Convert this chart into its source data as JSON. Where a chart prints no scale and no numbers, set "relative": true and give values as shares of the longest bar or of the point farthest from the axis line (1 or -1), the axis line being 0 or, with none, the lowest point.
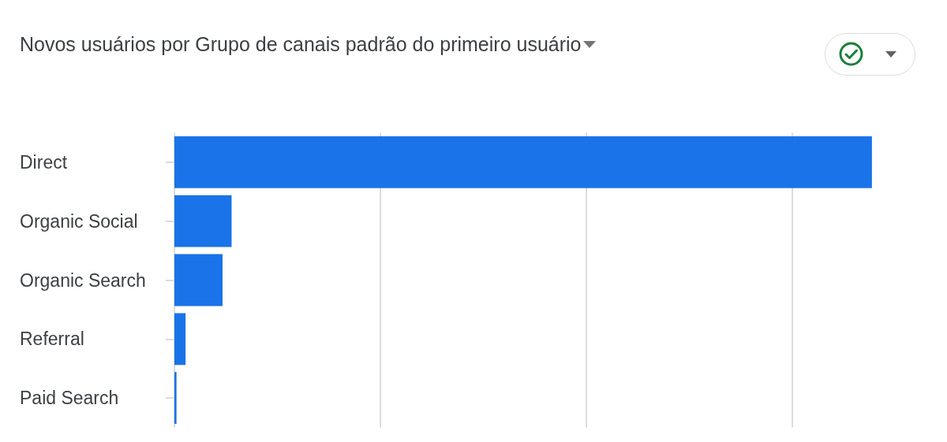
{
  "chart_data": {
    "type": "bar",
    "orientation": "horizontal",
    "relative": true,
    "title": "Novos usuários por Grupo de canais padrão do primeiro usuário",
    "categories": [
      "Direct",
      "Organic Social",
      "Organic Search",
      "Referral",
      "Paid Search"
    ],
    "values": [
      1,
      0.082,
      0.069,
      0.016,
      0.003
    ],
    "color": "#1a73e8",
    "grid": "x"
  }
}
